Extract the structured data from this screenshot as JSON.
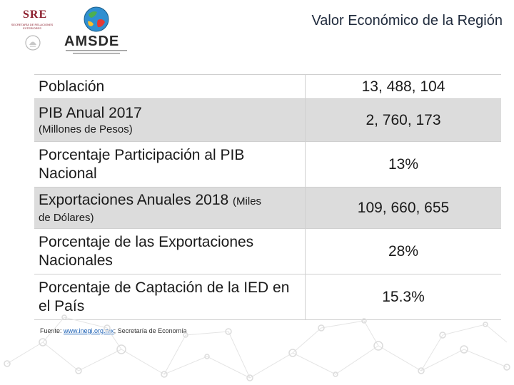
{
  "header": {
    "title": "Valor Económico de la Región"
  },
  "logos": {
    "sre_text": "SRE",
    "sre_subtitle": "SECRETARÍA DE RELACIONES EXTERIORES",
    "amsde_text": "AMSDE"
  },
  "table": {
    "rows": [
      {
        "label": "Población",
        "value": "13, 488, 104"
      },
      {
        "label": "PIB Anual 2017",
        "sublabel": "(Millones de Pesos)",
        "value": "2, 760, 173"
      },
      {
        "label": "Porcentaje Participación al PIB Nacional",
        "value": "13%"
      },
      {
        "label": "Exportaciones Anuales 2018",
        "label_small": "(Miles",
        "sublabel": "de Dólares)",
        "value": "109, 660, 655"
      },
      {
        "label": "Porcentaje de las Exportaciones Nacionales",
        "value": "28%"
      },
      {
        "label": "Porcentaje de Captación de la IED en el País",
        "value": "15.3%"
      }
    ]
  },
  "footer": {
    "prefix": "Fuente: ",
    "link": "www.inegi.org.mx",
    "suffix": "; Secretaría de Economía"
  }
}
